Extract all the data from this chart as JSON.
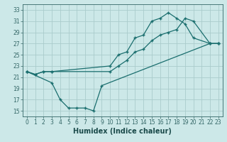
{
  "title": "",
  "xlabel": "Humidex (Indice chaleur)",
  "background_color": "#cce8e8",
  "grid_color": "#aacccc",
  "line_color": "#1a6e6e",
  "xlim": [
    -0.5,
    23.5
  ],
  "ylim": [
    14,
    34
  ],
  "xticks": [
    0,
    1,
    2,
    3,
    4,
    5,
    6,
    7,
    8,
    9,
    10,
    11,
    12,
    13,
    14,
    15,
    16,
    17,
    18,
    19,
    20,
    21,
    22,
    23
  ],
  "yticks": [
    15,
    17,
    19,
    21,
    23,
    25,
    27,
    29,
    31,
    33
  ],
  "series1_x": [
    0,
    1,
    2,
    3,
    10,
    11,
    12,
    13,
    14,
    15,
    16,
    17,
    18,
    19,
    20,
    22,
    23
  ],
  "series1_y": [
    22,
    21.5,
    22,
    22,
    23,
    25,
    25.5,
    28,
    28.5,
    31,
    31.5,
    32.5,
    31.5,
    30.5,
    28,
    27,
    27
  ],
  "series2_x": [
    0,
    1,
    2,
    3,
    10,
    11,
    12,
    13,
    14,
    15,
    16,
    17,
    18,
    19,
    20,
    22,
    23
  ],
  "series2_y": [
    22,
    21.5,
    22,
    22,
    22,
    23,
    24,
    25.5,
    26,
    27.5,
    28.5,
    29,
    29.5,
    31.5,
    31,
    27,
    27
  ],
  "series3_x": [
    0,
    3,
    4,
    5,
    6,
    7,
    8,
    9,
    22,
    23
  ],
  "series3_y": [
    22,
    20,
    17,
    15.5,
    15.5,
    15.5,
    15,
    19.5,
    27,
    27
  ],
  "tick_fontsize": 5.5,
  "xlabel_fontsize": 7
}
